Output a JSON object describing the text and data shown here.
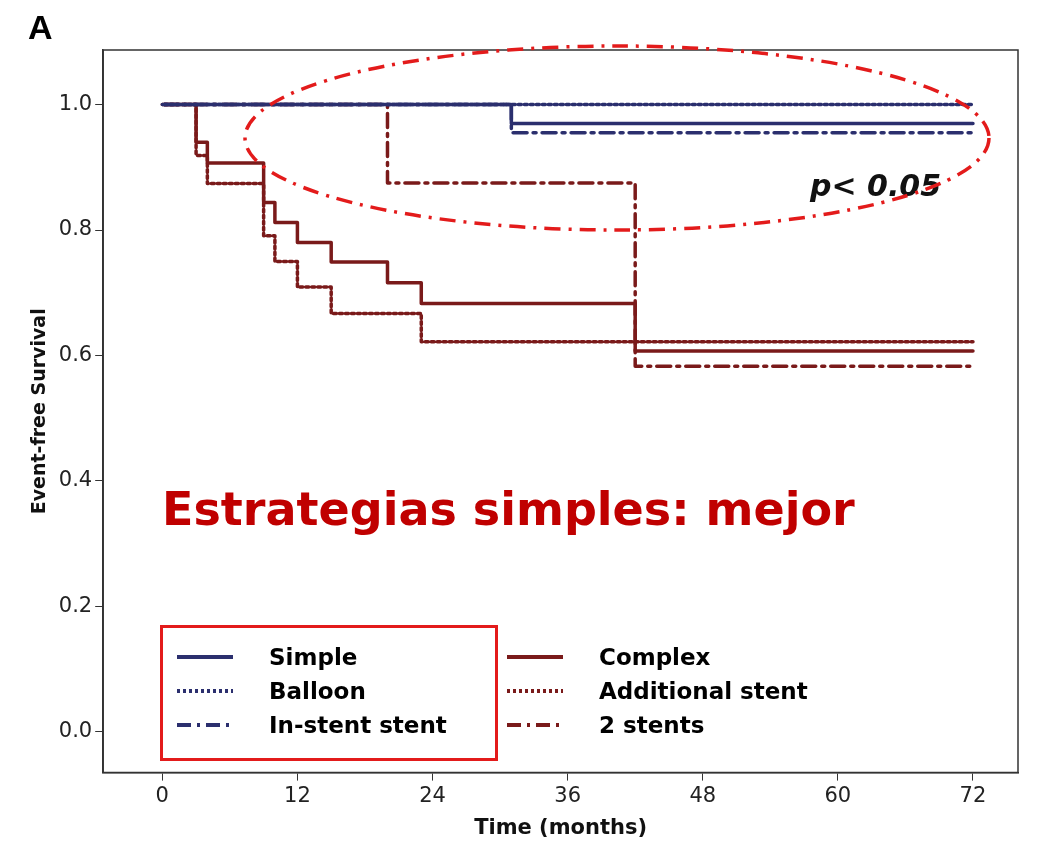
{
  "chart_data": {
    "type": "step",
    "title": "A",
    "xlabel": "Time (months)",
    "ylabel": "Event-free Survival",
    "xlim": [
      -5.25,
      76
    ],
    "xticks": [
      0,
      12,
      24,
      36,
      48,
      60,
      72
    ],
    "ylim": [
      -0.065,
      1.087
    ],
    "yticks": [
      {
        "value": 0,
        "label": "0.0"
      },
      {
        "value": 0.2,
        "label": "0.2"
      },
      {
        "value": 0.4,
        "label": "0.4"
      },
      {
        "value": 0.6,
        "label": "0.6"
      },
      {
        "value": 0.8,
        "label": "0.8"
      },
      {
        "value": 1,
        "label": "1.0"
      }
    ],
    "grid": false,
    "legend": "bottom left",
    "marker": "none",
    "annotations": [
      "p< 0.05",
      "Estrategias simples: mejor"
    ],
    "series": [
      {
        "name": "Simple",
        "color": "#2b2f6e",
        "line_style": "solid",
        "x": [
          0,
          31,
          72
        ],
        "values": [
          1,
          0.97,
          0.97
        ]
      },
      {
        "name": "Balloon",
        "color": "#2b2f6e",
        "line_style": "dotted",
        "x": [
          0,
          72
        ],
        "values": [
          1,
          1
        ]
      },
      {
        "name": "In-stent stent",
        "color": "#2b2f6e",
        "line_style": "dashdot",
        "x": [
          0,
          31,
          72
        ],
        "values": [
          1,
          0.955,
          0.955
        ]
      },
      {
        "name": "Complex",
        "color": "#7a1a1a",
        "line_style": "solid",
        "x": [
          0,
          3,
          4,
          9,
          10,
          12,
          15,
          20,
          23,
          42,
          72
        ],
        "values": [
          1,
          0.94,
          0.907,
          0.844,
          0.812,
          0.78,
          0.749,
          0.716,
          0.683,
          0.607,
          0.607
        ]
      },
      {
        "name": "Additional stent",
        "color": "#7a1a1a",
        "line_style": "dotted",
        "x": [
          0,
          3,
          4,
          9,
          10,
          12,
          15,
          23,
          72
        ],
        "values": [
          1,
          0.919,
          0.874,
          0.791,
          0.75,
          0.709,
          0.667,
          0.622,
          0.622
        ]
      },
      {
        "name": "2 stents",
        "color": "#7a1a1a",
        "line_style": "dashdot",
        "x": [
          0,
          20,
          42,
          72
        ],
        "values": [
          1,
          0.875,
          0.583,
          0.583
        ]
      }
    ]
  }
}
